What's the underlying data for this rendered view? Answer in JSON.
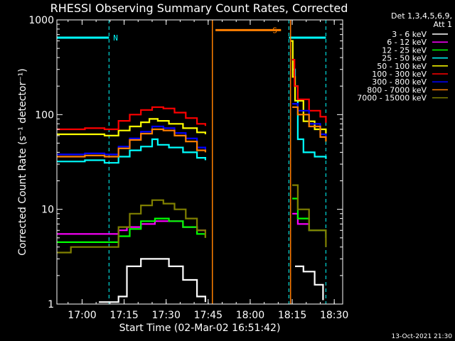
{
  "chart_data": {
    "type": "line",
    "title": "RHESSI Observing Summary Count Rates, Corrected",
    "xlabel": "Start Time (02-Mar-02 16:51:42)",
    "ylabel": "Corrected Count Rate (s⁻¹ detector⁻¹)",
    "yscale": "log",
    "ylim": [
      1,
      1000
    ],
    "xlim_minutes_after_1651": [
      0,
      102
    ],
    "x_ticks": [
      {
        "label": "17:00",
        "min": 9
      },
      {
        "label": "17:15",
        "min": 24
      },
      {
        "label": "17:30",
        "min": 39
      },
      {
        "label": "17:45",
        "min": 54
      },
      {
        "label": "18:00",
        "min": 69
      },
      {
        "label": "18:15",
        "min": 84
      },
      {
        "label": "18:30",
        "min": 99
      }
    ],
    "y_ticks": [
      {
        "label": "1",
        "v": 1
      },
      {
        "label": "10",
        "v": 10
      },
      {
        "label": "100",
        "v": 100
      },
      {
        "label": "1000",
        "v": 1000
      }
    ],
    "legend_header": [
      "Det 1,3,4,5,6,9,",
      "Att 1"
    ],
    "legend_placement": "right",
    "footer": "13-Oct-2021 21:30",
    "flags": [
      {
        "label": "N",
        "color": "#00ffff",
        "level": 650,
        "segments": [
          [
            0,
            18.6
          ],
          [
            82.8,
            96
          ]
        ]
      },
      {
        "label": "S",
        "color": "#ff8000",
        "level": 780,
        "segments": [
          [
            56.6,
            80
          ]
        ]
      }
    ],
    "markers": [
      {
        "color": "#00ffff",
        "style": "dashed",
        "x_min": 18.6
      },
      {
        "color": "#00ffff",
        "style": "dashed",
        "x_min": 82.8
      },
      {
        "color": "#00ffff",
        "style": "dashed",
        "x_min": 96
      },
      {
        "color": "#ff8000",
        "style": "solid",
        "x_min": 55.5
      },
      {
        "color": "#ff8000",
        "style": "solid",
        "x_min": 83.4
      }
    ],
    "series": [
      {
        "name": "3 - 6 keV",
        "color": "#ffffff",
        "points": [
          [
            15,
            1.05
          ],
          [
            22,
            1.2
          ],
          [
            25,
            2.5
          ],
          [
            30,
            3
          ],
          [
            35,
            3
          ],
          [
            40,
            2.5
          ],
          [
            45,
            1.8
          ],
          [
            50,
            1.2
          ],
          [
            53,
            1.05
          ],
          [
            85,
            2.5
          ],
          [
            88,
            2.2
          ],
          [
            92,
            1.6
          ],
          [
            95,
            1.1
          ]
        ]
      },
      {
        "name": "6 - 12 keV",
        "color": "#ff00ff",
        "points": [
          [
            0,
            5.5
          ],
          [
            10,
            5.5
          ],
          [
            18,
            5.5
          ],
          [
            22,
            6
          ],
          [
            25,
            6.5
          ],
          [
            30,
            7
          ],
          [
            35,
            7.5
          ],
          [
            40,
            7.5
          ],
          [
            45,
            6.5
          ],
          [
            50,
            6
          ],
          [
            53,
            5.8
          ],
          [
            84,
            9
          ],
          [
            86,
            7
          ],
          [
            90,
            6
          ],
          [
            96,
            5.5
          ]
        ]
      },
      {
        "name": "12 - 25 keV",
        "color": "#00ff00",
        "points": [
          [
            0,
            4.5
          ],
          [
            10,
            4.5
          ],
          [
            18,
            4.5
          ],
          [
            22,
            5.2
          ],
          [
            26,
            6.2
          ],
          [
            30,
            7.5
          ],
          [
            35,
            8
          ],
          [
            40,
            7.5
          ],
          [
            45,
            6.5
          ],
          [
            50,
            5.5
          ],
          [
            53,
            5
          ],
          [
            84,
            13
          ],
          [
            86,
            8
          ],
          [
            90,
            6
          ],
          [
            96,
            5
          ]
        ]
      },
      {
        "name": "25 - 50 keV",
        "color": "#00ffff",
        "points": [
          [
            0,
            32
          ],
          [
            10,
            33
          ],
          [
            17,
            31
          ],
          [
            18.6,
            31
          ],
          [
            22,
            36
          ],
          [
            26,
            42
          ],
          [
            30,
            46
          ],
          [
            34,
            55
          ],
          [
            36,
            48
          ],
          [
            40,
            45
          ],
          [
            45,
            40
          ],
          [
            50,
            35
          ],
          [
            53,
            33
          ],
          [
            84,
            300
          ],
          [
            85,
            200
          ],
          [
            86,
            55
          ],
          [
            88,
            40
          ],
          [
            92,
            36
          ],
          [
            96,
            34
          ]
        ]
      },
      {
        "name": "50 - 100 keV",
        "color": "#ffff00",
        "points": [
          [
            0,
            62
          ],
          [
            10,
            62
          ],
          [
            17,
            60
          ],
          [
            18.6,
            60
          ],
          [
            22,
            68
          ],
          [
            26,
            75
          ],
          [
            30,
            83
          ],
          [
            33,
            90
          ],
          [
            36,
            86
          ],
          [
            40,
            80
          ],
          [
            45,
            72
          ],
          [
            50,
            65
          ],
          [
            53,
            62
          ],
          [
            83.6,
            600
          ],
          [
            84.2,
            250
          ],
          [
            85,
            140
          ],
          [
            88,
            85
          ],
          [
            92,
            70
          ],
          [
            96,
            62
          ]
        ]
      },
      {
        "name": "100 - 300 keV",
        "color": "#ff0000",
        "points": [
          [
            0,
            70
          ],
          [
            10,
            72
          ],
          [
            17,
            70
          ],
          [
            18.6,
            70
          ],
          [
            22,
            86
          ],
          [
            26,
            100
          ],
          [
            30,
            112
          ],
          [
            34,
            120
          ],
          [
            38,
            116
          ],
          [
            42,
            105
          ],
          [
            46,
            92
          ],
          [
            50,
            80
          ],
          [
            53,
            76
          ],
          [
            84,
            380
          ],
          [
            84.8,
            200
          ],
          [
            86,
            145
          ],
          [
            90,
            110
          ],
          [
            94,
            95
          ],
          [
            96,
            82
          ]
        ]
      },
      {
        "name": "300 - 800 keV",
        "color": "#0000ff",
        "points": [
          [
            0,
            38
          ],
          [
            10,
            39
          ],
          [
            17,
            38
          ],
          [
            18.6,
            38
          ],
          [
            22,
            46
          ],
          [
            26,
            56
          ],
          [
            30,
            66
          ],
          [
            34,
            75
          ],
          [
            38,
            72
          ],
          [
            42,
            64
          ],
          [
            46,
            56
          ],
          [
            50,
            45
          ],
          [
            53,
            42
          ],
          [
            84,
            130
          ],
          [
            86,
            110
          ],
          [
            90,
            80
          ],
          [
            94,
            62
          ],
          [
            96,
            55
          ]
        ]
      },
      {
        "name": "800 - 7000 keV",
        "color": "#ff8000",
        "points": [
          [
            0,
            36
          ],
          [
            10,
            37
          ],
          [
            17,
            36
          ],
          [
            18.6,
            36
          ],
          [
            22,
            44
          ],
          [
            26,
            54
          ],
          [
            30,
            63
          ],
          [
            34,
            70
          ],
          [
            38,
            68
          ],
          [
            42,
            60
          ],
          [
            46,
            52
          ],
          [
            50,
            42
          ],
          [
            53,
            40
          ],
          [
            84,
            120
          ],
          [
            86,
            100
          ],
          [
            90,
            75
          ],
          [
            94,
            58
          ],
          [
            96,
            52
          ]
        ]
      },
      {
        "name": "7000 - 15000 keV",
        "color": "#808000",
        "points": [
          [
            0,
            3.5
          ],
          [
            5,
            4
          ],
          [
            10,
            4
          ],
          [
            18,
            4
          ],
          [
            22,
            6.5
          ],
          [
            26,
            9
          ],
          [
            30,
            11
          ],
          [
            34,
            12.5
          ],
          [
            38,
            11.5
          ],
          [
            42,
            10
          ],
          [
            46,
            8
          ],
          [
            50,
            6
          ],
          [
            53,
            5
          ],
          [
            84,
            18
          ],
          [
            86,
            10
          ],
          [
            90,
            6
          ],
          [
            96,
            4
          ]
        ]
      }
    ]
  }
}
